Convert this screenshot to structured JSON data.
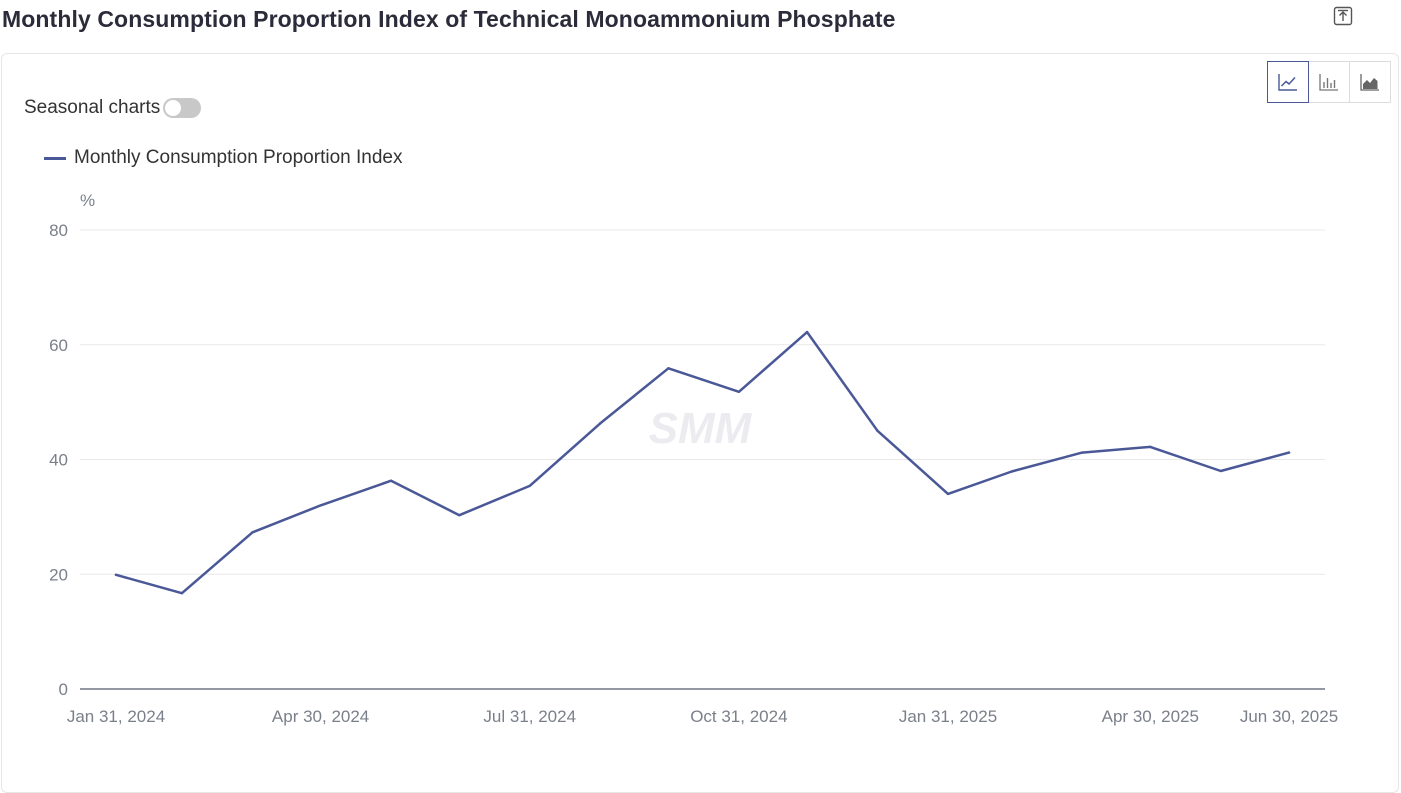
{
  "header": {
    "title": "Monthly Consumption Proportion Index of Technical Monoammonium Phosphate",
    "export_icon": "export-icon"
  },
  "controls": {
    "seasonal_label": "Seasonal charts",
    "seasonal_on": false,
    "chart_types": [
      {
        "icon": "line-chart-icon",
        "active": true
      },
      {
        "icon": "bar-chart-icon",
        "active": false
      },
      {
        "icon": "area-chart-icon",
        "active": false
      }
    ]
  },
  "colors": {
    "series": "#4a5897",
    "grid": "#e8e8e8",
    "axis_text": "#7a7f8a"
  },
  "watermark": "SMM",
  "chart_data": {
    "type": "line",
    "title": "Monthly Consumption Proportion Index of Technical Monoammonium Phosphate",
    "ylabel": "%",
    "xlabel": "",
    "ylim": [
      0,
      80
    ],
    "yticks": [
      "0",
      "20",
      "40",
      "60",
      "80"
    ],
    "xtick_labels": [
      "Jan 31, 2024",
      "Apr 30, 2024",
      "Jul 31, 2024",
      "Oct 31, 2024",
      "Jan 31, 2025",
      "Apr 30, 2025",
      "Jun 30, 2025"
    ],
    "grid": true,
    "legend_position": "top-left",
    "x": [
      "2024-01-31",
      "2024-02-29",
      "2024-03-31",
      "2024-04-30",
      "2024-05-31",
      "2024-06-30",
      "2024-07-31",
      "2024-08-31",
      "2024-09-30",
      "2024-10-31",
      "2024-11-30",
      "2024-12-31",
      "2025-01-31",
      "2025-02-28",
      "2025-03-31",
      "2025-04-30",
      "2025-05-31",
      "2025-06-30"
    ],
    "series": [
      {
        "name": "Monthly Consumption Proportion Index",
        "values": [
          19.9,
          16.7,
          27.3,
          32.0,
          36.3,
          30.3,
          35.4,
          46.3,
          55.9,
          51.8,
          62.2,
          45.0,
          34.0,
          37.9,
          41.2,
          42.2,
          38.0,
          41.2
        ]
      }
    ]
  }
}
